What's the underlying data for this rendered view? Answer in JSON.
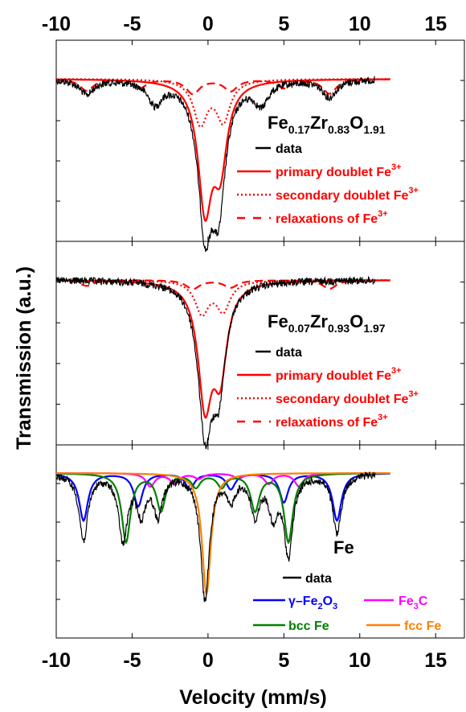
{
  "axes": {
    "xlabel": "Velocity (mm/s)",
    "ylabel": "Transmission (a.u.)",
    "xlim": [
      -10,
      17
    ],
    "ticks": [
      "-10",
      "-5",
      "0",
      "5",
      "10",
      "15"
    ]
  },
  "colors": {
    "data": "#000000",
    "fe3_components": "#ff0000",
    "gamma_fe2o3": "#0000ff",
    "fe3c": "#ff00ff",
    "bcc_fe": "#008000",
    "fcc_fe": "#ff8000"
  },
  "panels": [
    {
      "id": "panel-1",
      "formula": [
        {
          "t": "Fe",
          "sub": false
        },
        {
          "t": "0.17",
          "sub": true
        },
        {
          "t": "Zr",
          "sub": false
        },
        {
          "t": "0.83",
          "sub": true
        },
        {
          "t": "O",
          "sub": false
        },
        {
          "t": "1.91",
          "sub": true
        }
      ],
      "legend": [
        {
          "label": "data",
          "sup": "",
          "style": "solid",
          "color": "#000000"
        },
        {
          "label": "primary doublet Fe",
          "sup": "3+",
          "style": "solid",
          "color": "#ff0000"
        },
        {
          "label": "secondary doublet Fe",
          "sup": "3+",
          "style": "dotted",
          "color": "#ff0000"
        },
        {
          "label": "relaxations of Fe",
          "sup": "3+",
          "style": "dashed",
          "color": "#ff0000"
        }
      ]
    },
    {
      "id": "panel-2",
      "formula": [
        {
          "t": "Fe",
          "sub": false
        },
        {
          "t": "0.07",
          "sub": true
        },
        {
          "t": "Zr",
          "sub": false
        },
        {
          "t": "0.93",
          "sub": true
        },
        {
          "t": "O",
          "sub": false
        },
        {
          "t": "1.97",
          "sub": true
        }
      ],
      "legend": [
        {
          "label": "data",
          "sup": "",
          "style": "solid",
          "color": "#000000"
        },
        {
          "label": "primary doublet Fe",
          "sup": "3+",
          "style": "solid",
          "color": "#ff0000"
        },
        {
          "label": "secondary doublet Fe",
          "sup": "3+",
          "style": "dotted",
          "color": "#ff0000"
        },
        {
          "label": "relaxations of Fe",
          "sup": "3+",
          "style": "dashed",
          "color": "#ff0000"
        }
      ]
    },
    {
      "id": "panel-3",
      "formula": [
        {
          "t": "Fe",
          "sub": false
        }
      ],
      "legend": [
        {
          "label": "data",
          "style": "solid",
          "color": "#000000"
        },
        {
          "label": "γ–Fe",
          "sub1": "2",
          "mid": "O",
          "sub2": "3",
          "color": "#0000ff"
        },
        {
          "label": "Fe",
          "sub1": "3",
          "mid": "C",
          "sub2": "",
          "color": "#ff00ff"
        },
        {
          "label": "bcc Fe",
          "color": "#008000"
        },
        {
          "label": "fcc Fe",
          "color": "#ff8000"
        }
      ]
    }
  ],
  "chart_data": [
    {
      "type": "line",
      "title": "",
      "xlabel": "Velocity (mm/s)",
      "ylabel": "Transmission (a.u.)",
      "xlim": [
        -10,
        17
      ],
      "annotation": "Fe0.17Zr0.83O1.91",
      "series": [
        {
          "name": "data",
          "x_range": [
            -10,
            11
          ],
          "dips": [
            [
              -8,
              0.1
            ],
            [
              -3.5,
              0.15
            ],
            [
              -0.2,
              0.95
            ],
            [
              0.7,
              0.78
            ],
            [
              3.5,
              0.15
            ],
            [
              8,
              0.12
            ]
          ]
        },
        {
          "name": "primary doublet Fe3+",
          "x_range": [
            -10,
            12
          ],
          "dips": [
            [
              -0.2,
              0.85
            ],
            [
              0.8,
              0.55
            ]
          ]
        },
        {
          "name": "secondary doublet Fe3+",
          "x_range": [
            -10,
            12
          ],
          "dips": [
            [
              -0.5,
              0.3
            ],
            [
              1.0,
              0.28
            ]
          ]
        },
        {
          "name": "relaxations of Fe3+",
          "x_range": [
            -10,
            12
          ],
          "dips": [
            [
              -8,
              0.08
            ],
            [
              -4.5,
              0.06
            ],
            [
              -1.0,
              0.1
            ],
            [
              1.5,
              0.08
            ],
            [
              5,
              0.06
            ],
            [
              8,
              0.1
            ]
          ]
        }
      ]
    },
    {
      "type": "line",
      "title": "",
      "xlabel": "Velocity (mm/s)",
      "ylabel": "Transmission (a.u.)",
      "xlim": [
        -10,
        17
      ],
      "annotation": "Fe0.07Zr0.93O1.97",
      "series": [
        {
          "name": "data",
          "x_range": [
            -10,
            11
          ],
          "dips": [
            [
              -0.2,
              0.95
            ],
            [
              0.7,
              0.65
            ]
          ]
        },
        {
          "name": "primary doublet Fe3+",
          "x_range": [
            -10,
            12
          ],
          "dips": [
            [
              -0.2,
              0.8
            ],
            [
              0.8,
              0.58
            ]
          ]
        },
        {
          "name": "secondary doublet Fe3+",
          "x_range": [
            -10,
            12
          ],
          "dips": [
            [
              -0.4,
              0.22
            ],
            [
              1.0,
              0.2
            ]
          ]
        },
        {
          "name": "relaxations of Fe3+",
          "x_range": [
            -10,
            12
          ],
          "dips": [
            [
              -8,
              0.04
            ],
            [
              -1.0,
              0.06
            ],
            [
              1.5,
              0.05
            ],
            [
              8,
              0.06
            ]
          ]
        }
      ]
    },
    {
      "type": "line",
      "title": "",
      "xlabel": "Velocity (mm/s)",
      "ylabel": "Transmission (a.u.)",
      "xlim": [
        -10,
        17
      ],
      "annotation": "Fe",
      "series": [
        {
          "name": "data",
          "x_range": [
            -10,
            11
          ],
          "dips": [
            [
              -8.2,
              0.5
            ],
            [
              -5.6,
              0.5
            ],
            [
              -4.4,
              0.28
            ],
            [
              -3.3,
              0.3
            ],
            [
              -0.2,
              0.95
            ],
            [
              1.5,
              0.18
            ],
            [
              3.1,
              0.3
            ],
            [
              4.3,
              0.3
            ],
            [
              5.3,
              0.6
            ],
            [
              8.5,
              0.45
            ]
          ]
        },
        {
          "name": "γ–Fe2O3",
          "x_range": [
            -10,
            12
          ],
          "dips": [
            [
              -8.2,
              0.36
            ],
            [
              -4.6,
              0.25
            ],
            [
              -1.2,
              0.12
            ],
            [
              1.5,
              0.12
            ],
            [
              5.0,
              0.22
            ],
            [
              8.5,
              0.36
            ]
          ]
        },
        {
          "name": "Fe3C",
          "x_range": [
            -10,
            12
          ],
          "dips": [
            [
              -3.8,
              0.1
            ],
            [
              -2.2,
              0.08
            ],
            [
              -0.6,
              0.04
            ],
            [
              2.0,
              0.04
            ],
            [
              4.0,
              0.08
            ],
            [
              6.0,
              0.1
            ]
          ]
        },
        {
          "name": "bcc Fe",
          "x_range": [
            -10,
            12
          ],
          "dips": [
            [
              -5.4,
              0.52
            ],
            [
              -3.1,
              0.28
            ],
            [
              -0.8,
              0.1
            ],
            [
              0.9,
              0.1
            ],
            [
              3.1,
              0.28
            ],
            [
              5.3,
              0.52
            ]
          ]
        },
        {
          "name": "fcc Fe",
          "x_range": [
            -10,
            12
          ],
          "dips": [
            [
              -0.1,
              0.92
            ]
          ]
        }
      ]
    }
  ]
}
